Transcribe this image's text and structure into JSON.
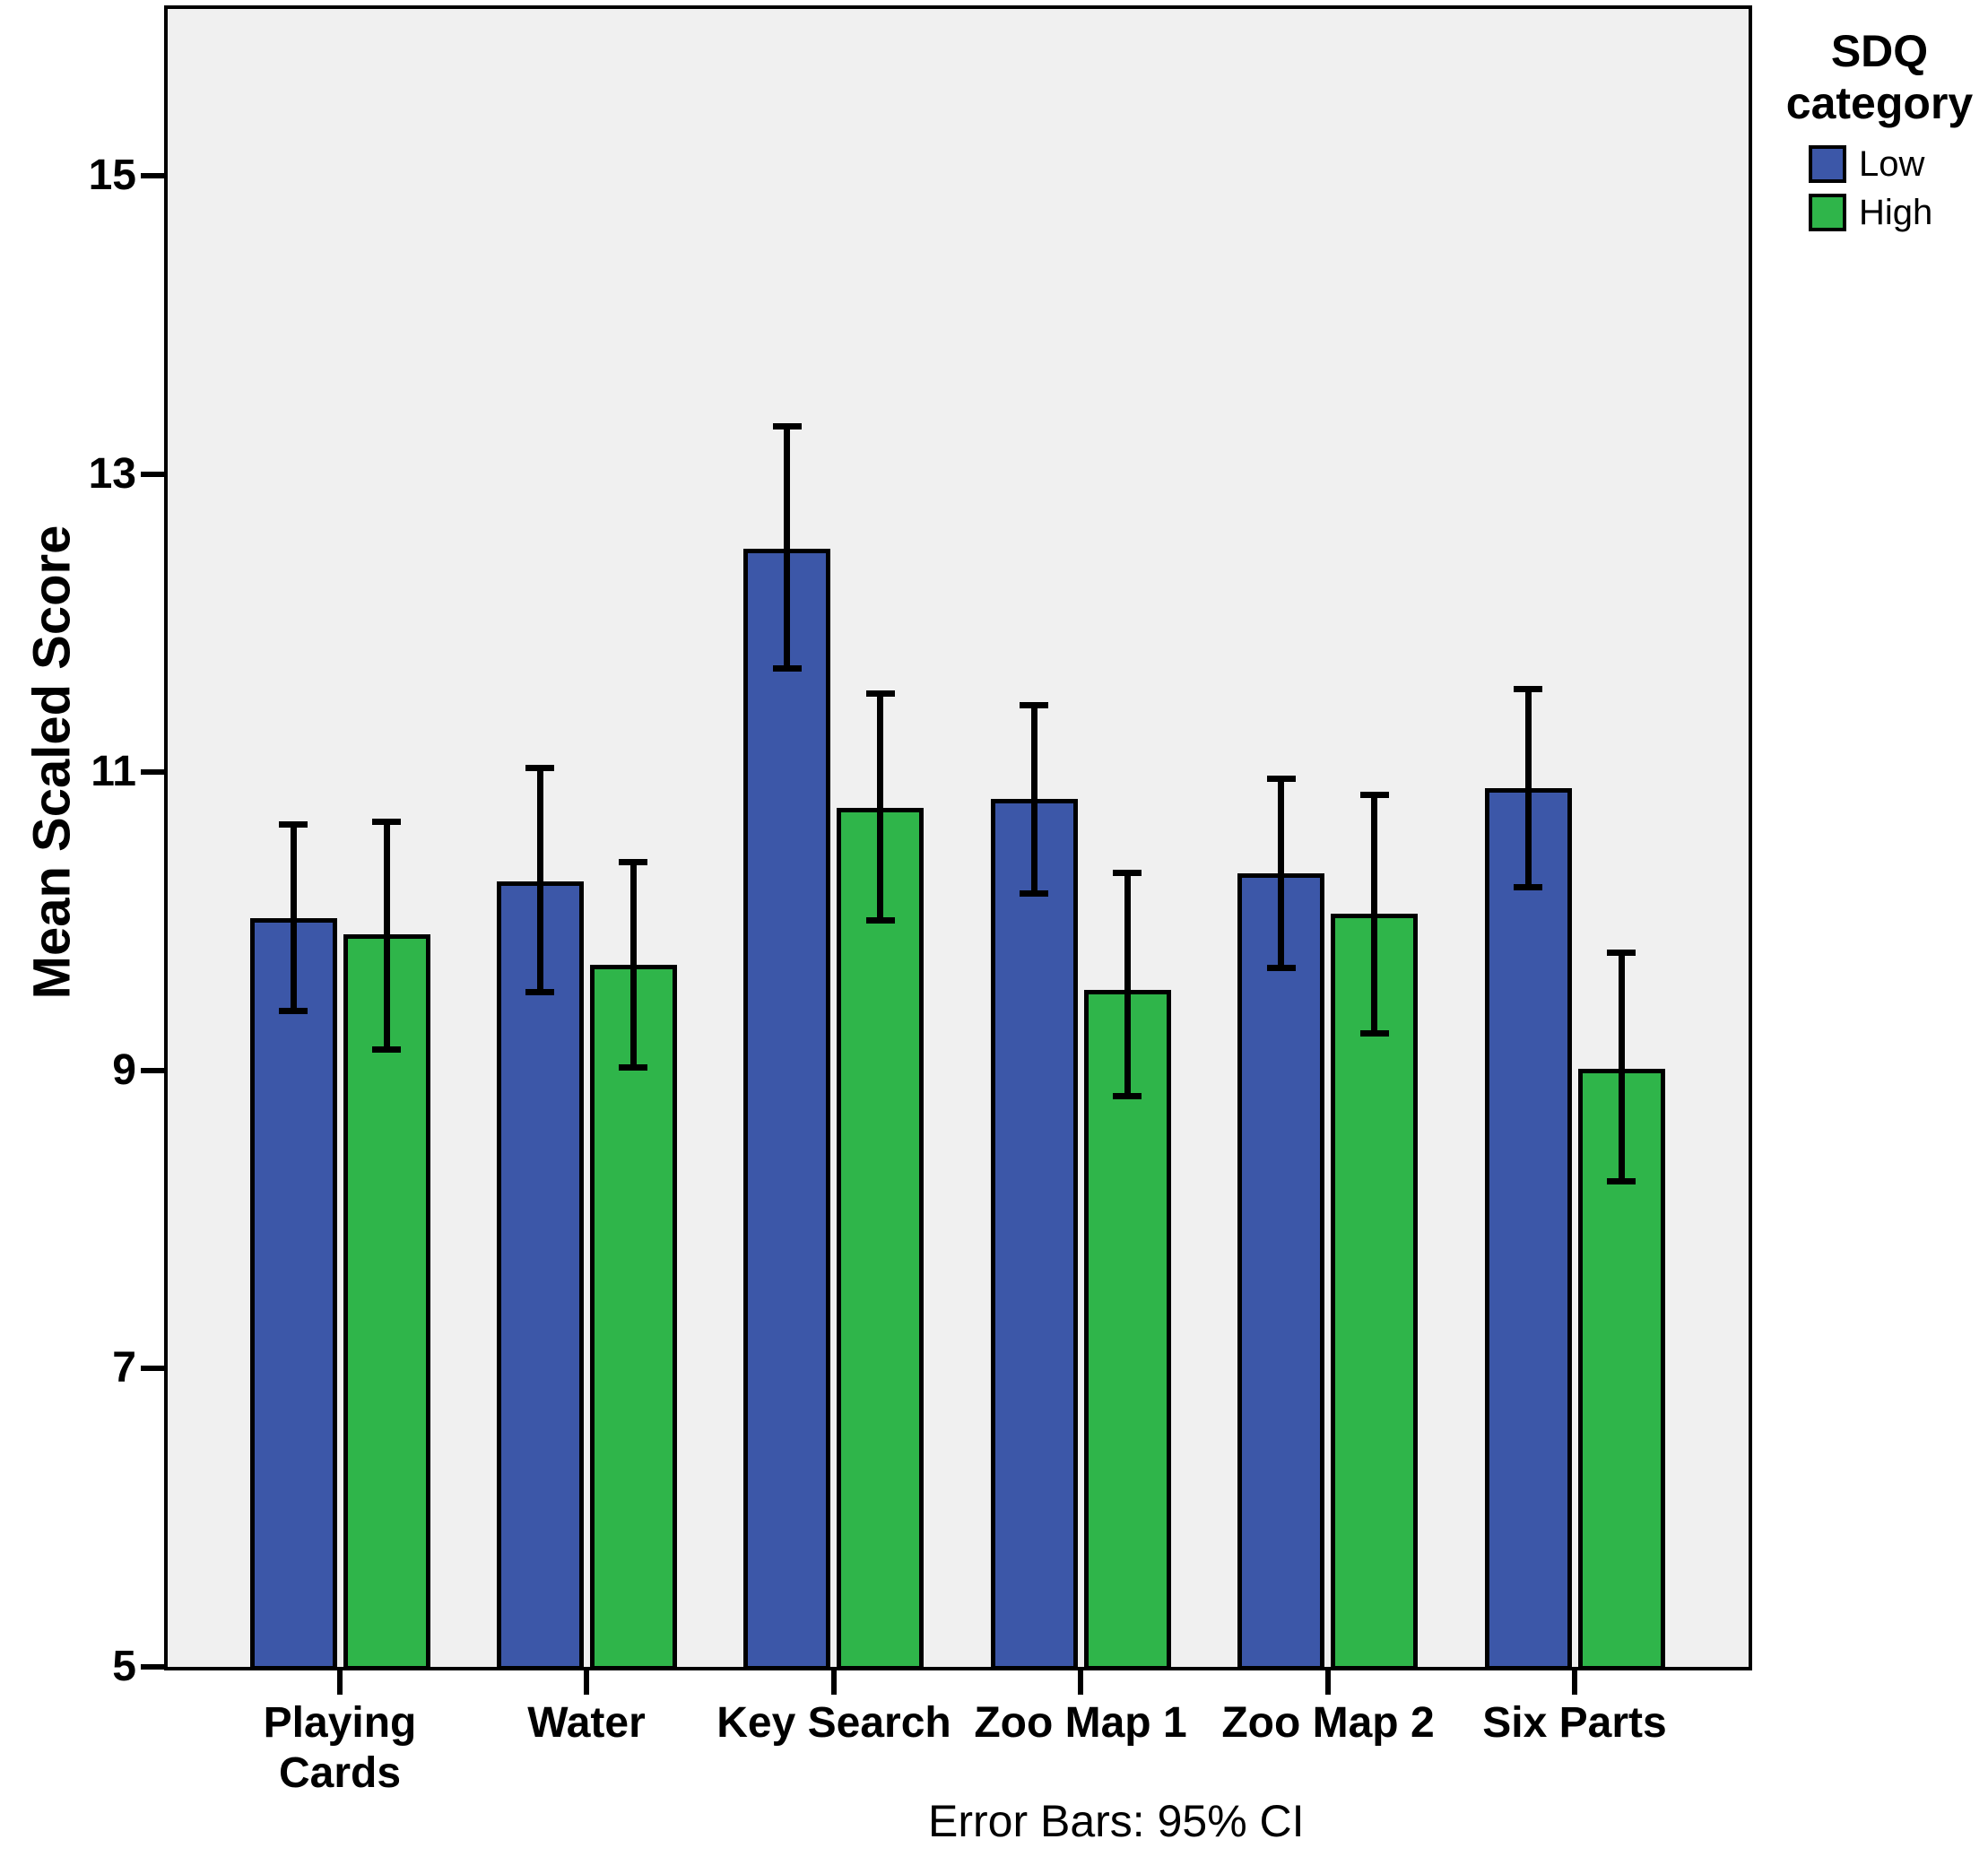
{
  "chart_data": {
    "type": "bar",
    "title": "",
    "ylabel": "Mean Scaled Score",
    "xlabel": "",
    "caption": "Error Bars: 95% CI",
    "ylim": [
      5,
      16.13
    ],
    "yticks": [
      5,
      7,
      9,
      11,
      13,
      15
    ],
    "grid": false,
    "plot_background": "#F0F0F0",
    "bar_outline": "#000000",
    "error_bar_color": "#000000",
    "categories": [
      "Playing\nCards",
      "Water",
      "Key Search",
      "Zoo Map 1",
      "Zoo Map 2",
      "Six Parts"
    ],
    "series": [
      {
        "name": "Low",
        "color": "#3C57A8",
        "values": [
          10.02,
          10.27,
          12.5,
          10.82,
          10.32,
          10.89
        ],
        "ci_low": [
          9.4,
          9.53,
          11.7,
          10.19,
          9.69,
          10.23
        ],
        "ci_high": [
          10.65,
          11.03,
          13.32,
          11.45,
          10.96,
          11.56
        ]
      },
      {
        "name": "High",
        "color": "#2FB54A",
        "values": [
          9.91,
          9.71,
          10.76,
          9.54,
          10.05,
          9.01
        ],
        "ci_low": [
          9.14,
          9.02,
          10.01,
          8.83,
          9.25,
          8.26
        ],
        "ci_high": [
          10.67,
          10.4,
          11.53,
          10.33,
          10.85,
          9.79
        ]
      }
    ],
    "legend": {
      "title": "SDQ category",
      "position": "top-right"
    }
  }
}
